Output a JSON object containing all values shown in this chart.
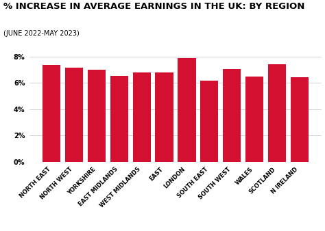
{
  "title": "% INCREASE IN AVERAGE EARNINGS IN THE UK: BY REGION",
  "subtitle": "(JUNE 2022-MAY 2023)",
  "categories": [
    "NORTH EAST",
    "NORTH WEST",
    "YORKSHIRE",
    "EAST MIDLANDS",
    "WEST MIDLANDS",
    "EAST",
    "LONDON",
    "SOUTH EAST",
    "SOUTH WEST",
    "WALES",
    "SCOTLAND",
    "N IRELAND"
  ],
  "values": [
    7.35,
    7.15,
    7.0,
    6.55,
    6.8,
    6.8,
    7.9,
    6.15,
    7.05,
    6.5,
    7.45,
    6.45
  ],
  "bar_color": "#d41030",
  "background_color": "#ffffff",
  "title_fontsize": 9.5,
  "subtitle_fontsize": 7,
  "ylim": [
    0,
    8.8
  ],
  "yticks": [
    0,
    2,
    4,
    6,
    8
  ],
  "ytick_labels": [
    "0%",
    "2%",
    "4%",
    "6%",
    "8%"
  ]
}
